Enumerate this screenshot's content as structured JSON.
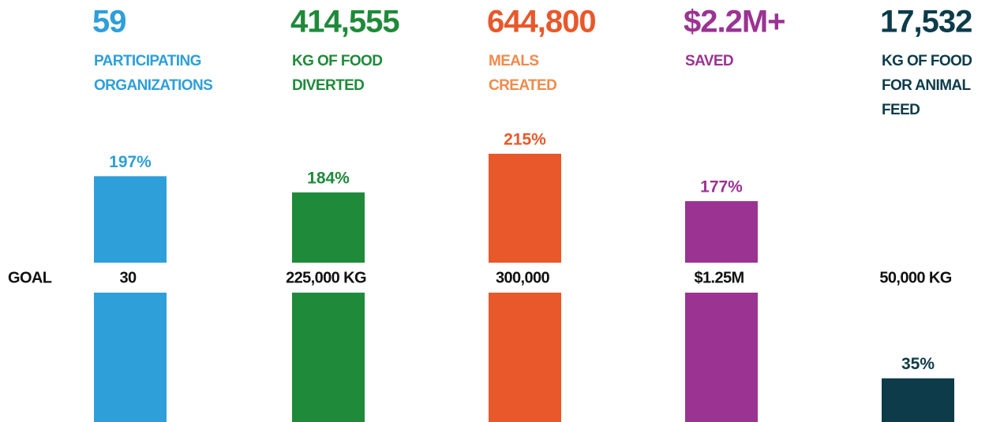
{
  "chart_data": {
    "type": "bar",
    "headlines": [
      "59",
      "414,555",
      "644,800",
      "$2.2M+",
      "17,532"
    ],
    "labels": [
      [
        "PARTICIPATING",
        "ORGANIZATIONS"
      ],
      [
        "KG OF FOOD",
        "DIVERTED"
      ],
      [
        "MEALS",
        "CREATED"
      ],
      [
        "SAVED"
      ],
      [
        "KG OF FOOD",
        "FOR ANIMAL",
        "FEED"
      ]
    ],
    "values": [
      197,
      184,
      215,
      177,
      35
    ],
    "value_labels": [
      "197%",
      "184%",
      "215%",
      "177%",
      "35%"
    ],
    "colors": [
      "#2e9fd9",
      "#1f8a3a",
      "#e8582a",
      "#9b3393",
      "#0d3b4a"
    ],
    "label_colors": [
      "#2e9fd9",
      "#1f8a3a",
      "#f08a4b",
      "#9b3393",
      "#0d3b4a"
    ],
    "goal_label": "GOAL",
    "goals": [
      "30",
      "225,000 KG",
      "300,000",
      "$1.25M",
      "50,000 KG"
    ],
    "ylim": [
      0,
      220
    ]
  }
}
